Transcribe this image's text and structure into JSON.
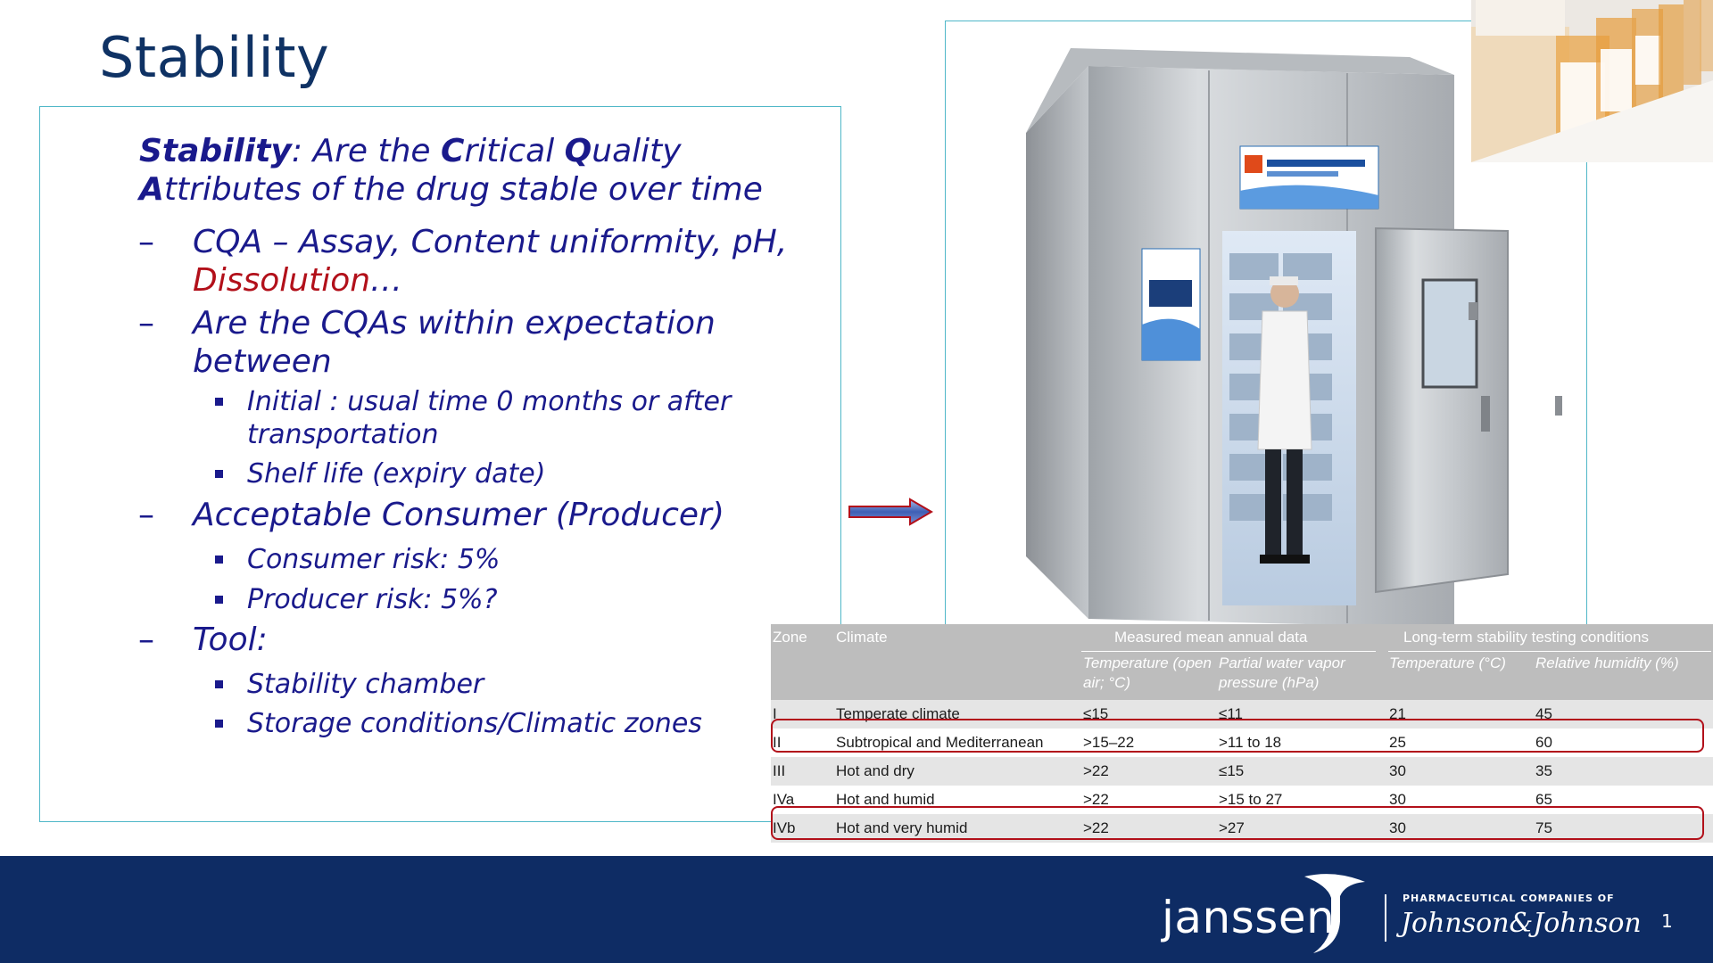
{
  "slide": {
    "title": "Stability",
    "page_number": "1"
  },
  "content": {
    "lead": {
      "w1": "Stability",
      "t1": ": Are the ",
      "w2": "C",
      "t2": "ritical ",
      "w3": "Q",
      "t3": "uality ",
      "w4": "A",
      "t4": "ttributes of the drug stable over time"
    },
    "items": [
      {
        "dash": "–",
        "text": "CQA – Assay, Content uniformity, pH,",
        "red": "Dissolution",
        "tail": "…"
      },
      {
        "dash": "–",
        "text": "Are the CQAs within expectation between"
      },
      {
        "bullet": "Initial : usual time 0 months or after transportation"
      },
      {
        "bullet": "Shelf life (expiry date)"
      },
      {
        "dash": "–",
        "text": "Acceptable Consumer (Producer)"
      },
      {
        "bullet": "Consumer risk: 5%"
      },
      {
        "bullet": "Producer risk: 5%?"
      },
      {
        "dash": "–",
        "text": "Tool:"
      },
      {
        "bullet": "Stability chamber"
      },
      {
        "bullet": "Storage conditions/Climatic zones"
      }
    ]
  },
  "table": {
    "headers": {
      "zone": "Zone",
      "climate": "Climate",
      "measured": "Measured mean annual data",
      "longterm": "Long-term stability testing conditions",
      "temp_open": "Temperature (open air; °C)",
      "vapor": "Partial water vapor pressure (hPa)",
      "temp": "Temperature (°C)",
      "rh": "Relative humidity (%)"
    },
    "rows": [
      [
        "I",
        "Temperate climate",
        "≤15",
        "≤11",
        "21",
        "45"
      ],
      [
        "II",
        "Subtropical and Mediterranean",
        ">15–22",
        ">11 to 18",
        "25",
        "60"
      ],
      [
        "III",
        "Hot and dry",
        ">22",
        "≤15",
        "30",
        "35"
      ],
      [
        "IVa",
        "Hot and humid",
        ">22",
        ">15 to 27",
        "30",
        "65"
      ],
      [
        "IVb",
        "Hot and very humid",
        ">22",
        ">27",
        "30",
        "75"
      ]
    ]
  },
  "branding": {
    "logo": "janssen",
    "tagline": "PHARMACEUTICAL COMPANIES OF",
    "parent": "Johnson&Johnson"
  },
  "colors": {
    "title": "#0f3264",
    "body_text": "#1a1a8c",
    "accent_red": "#b2101a",
    "footer": "#0e2c64",
    "frame": "#4fb7c8"
  }
}
